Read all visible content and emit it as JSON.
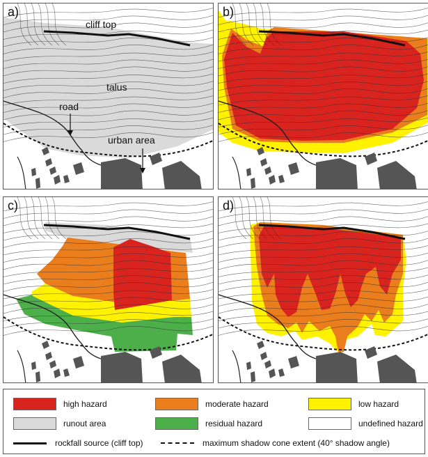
{
  "colors": {
    "high": "#d8231f",
    "moderate": "#ea7d1c",
    "low": "#fff200",
    "runout": "#dadada",
    "residual": "#4daf4a",
    "undefined": "#ffffff",
    "building": "#555555",
    "contour": "#333333"
  },
  "panels": {
    "a": {
      "label": "a)",
      "annotations": {
        "cliff_top": "cliff top",
        "talus": "talus",
        "road": "road",
        "urban_area": "urban area"
      }
    },
    "b": {
      "label": "b)"
    },
    "c": {
      "label": "c)"
    },
    "d": {
      "label": "d)"
    }
  },
  "legend": {
    "items": [
      {
        "key": "high",
        "label": "high hazard"
      },
      {
        "key": "moderate",
        "label": "moderate hazard"
      },
      {
        "key": "low",
        "label": "low hazard"
      },
      {
        "key": "runout",
        "label": "runout area"
      },
      {
        "key": "residual",
        "label": "residual hazard"
      },
      {
        "key": "undefined",
        "label": "undefined hazard"
      }
    ],
    "lines": {
      "source": "rockfall source (cliff top)",
      "shadow": "maximum shadow cone extent (40° shadow angle)"
    }
  }
}
